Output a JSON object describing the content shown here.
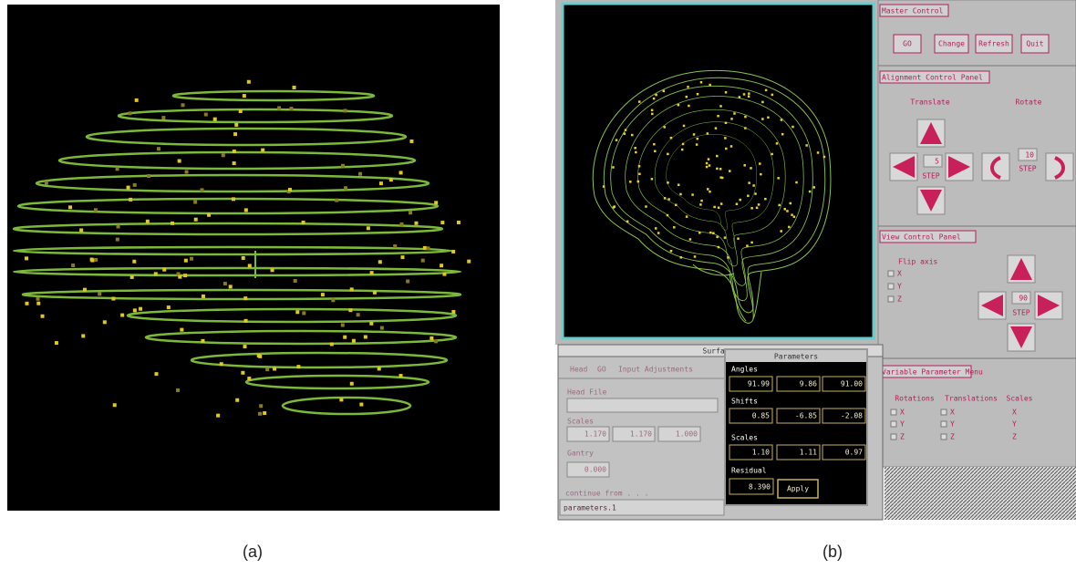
{
  "figure": {
    "label_a": "(a)",
    "label_b": "(b)"
  },
  "master_control": {
    "title": "Master Control",
    "buttons": [
      "GO",
      "Change",
      "Refresh",
      "Quit"
    ]
  },
  "alignment_panel": {
    "title": "Alignment Control Panel",
    "translate": "Translate",
    "rotate": "Rotate",
    "translate_step": "5",
    "translate_step_label": "STEP",
    "rotate_step": "10",
    "rotate_step_label": "STEP"
  },
  "view_panel": {
    "title": "View Control Panel",
    "flip_axis": "Flip axis",
    "axes": [
      "X",
      "Y",
      "Z"
    ],
    "step": "90",
    "step_label": "STEP"
  },
  "variable_menu": {
    "title": "Variable Parameter Menu",
    "columns": [
      "Rotations",
      "Translations",
      "Scales"
    ],
    "rotations": [
      "X",
      "Y",
      "Z"
    ],
    "translations": [
      "X",
      "Y",
      "Z"
    ],
    "scales": [
      "X",
      "Y",
      "Z"
    ]
  },
  "surface_window": {
    "title": "Surfac",
    "menu": [
      "Head",
      "GO",
      "Input Adjustments"
    ],
    "head_file": "Head File",
    "scales_label": "Scales",
    "scales": [
      "1.170",
      "1.170",
      "1.000"
    ],
    "gantry_label": "Gantry",
    "gantry": "0.000",
    "continue": "continue from . . .",
    "status": "parameters.1"
  },
  "parameters_dialog": {
    "title": "Parameters",
    "angles_label": "Angles",
    "angles": [
      "91.99",
      "9.86",
      "91.00"
    ],
    "shifts_label": "Shifts",
    "shifts": [
      "0.85",
      "-6.85",
      "-2.08"
    ],
    "scales_label": "Scales",
    "scales": [
      "1.10",
      "1.11",
      "0.97"
    ],
    "residual_label": "Residual",
    "residual": "8.390",
    "apply": "Apply"
  }
}
